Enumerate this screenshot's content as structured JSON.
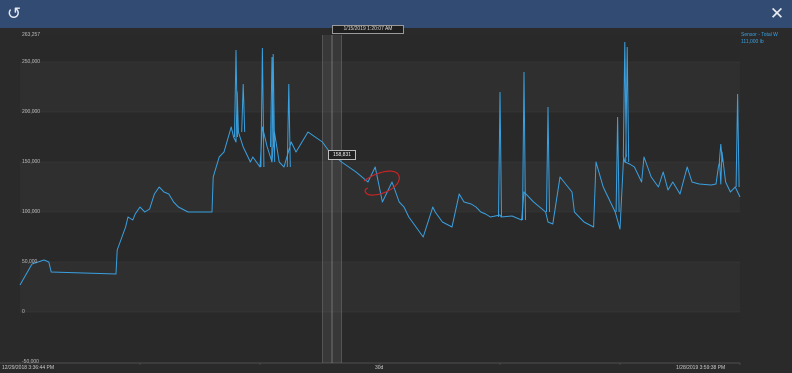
{
  "window": {
    "refresh_icon": "refresh-icon",
    "close_icon": "close-icon",
    "refresh_glyph": "↺",
    "close_glyph": "✕"
  },
  "cursor": {
    "time_label": "1/15/2019 1:20:07 AM",
    "value_label": "158,831"
  },
  "legend": {
    "line1": "Sensor - Total W",
    "line2": "111,000 lb"
  },
  "colors": {
    "line": "#3aa0e0",
    "annotation": "#d22424",
    "background": "#2a2a2a",
    "titlebar": "#324b72"
  },
  "chart_data": {
    "type": "line",
    "y_ticks": [
      "263,257",
      "250,000",
      "200,000",
      "150,000",
      "100,000",
      "50,000",
      "0",
      "-50,000"
    ],
    "x_ticks": [
      "12/29/2018 3:36:44 PM",
      "30d",
      "1/28/2019 3:59:38 PM"
    ],
    "ylim": [
      -50000,
      263257
    ],
    "xlim": [
      0,
      30
    ],
    "x_unit": "days",
    "grid": true,
    "series": [
      {
        "name": "Sensor - Total W",
        "x": [
          0,
          0.5,
          1.0,
          1.2,
          1.3,
          4.0,
          4.05,
          4.4,
          4.5,
          4.7,
          4.8,
          5.0,
          5.2,
          5.4,
          5.6,
          5.8,
          6.0,
          6.2,
          6.4,
          6.6,
          7.0,
          8.0,
          8.05,
          8.3,
          8.5,
          8.8,
          8.9,
          9.0,
          9.05,
          9.1,
          9.3,
          9.4,
          9.6,
          9.7,
          10.0,
          10.1,
          10.3,
          10.5,
          10.6,
          10.8,
          11.0,
          11.3,
          11.5,
          12.0,
          12.3,
          12.6,
          12.9,
          13.0,
          13.2,
          13.3,
          13.4,
          14.0,
          14.5,
          14.8,
          15.1,
          15.5,
          15.8,
          16.0,
          16.2,
          16.5,
          16.8,
          17.2,
          17.3,
          17.6,
          18.0,
          18.3,
          18.5,
          18.8,
          19.0,
          19.2,
          19.4,
          19.6,
          20.0,
          20.05,
          20.5,
          20.9,
          21.0,
          21.4,
          21.9,
          22.0,
          22.2,
          22.5,
          23.0,
          23.1,
          23.5,
          23.9,
          24.0,
          24.3,
          24.6,
          24.8,
          25.0,
          25.15,
          25.2,
          25.4,
          25.6,
          25.9,
          26.0,
          26.3,
          26.6,
          26.8,
          27.0,
          27.2,
          27.5,
          27.8,
          28.0,
          28.3,
          28.8,
          29.0,
          29.1,
          29.15,
          29.2,
          29.25,
          29.4,
          29.6,
          29.8,
          30.0
        ],
        "values": [
          27000,
          48000,
          52000,
          50000,
          40000,
          38000,
          62000,
          85000,
          95000,
          92000,
          98000,
          105000,
          100000,
          103000,
          118000,
          125000,
          120000,
          118000,
          110000,
          105000,
          100000,
          100000,
          135000,
          155000,
          160000,
          185000,
          175000,
          170000,
          220000,
          180000,
          165000,
          160000,
          150000,
          155000,
          145000,
          185000,
          165000,
          150000,
          180000,
          150000,
          145000,
          170000,
          160000,
          180000,
          175000,
          170000,
          160000,
          158831,
          155000,
          152000,
          150000,
          140000,
          130000,
          145000,
          110000,
          130000,
          110000,
          105000,
          95000,
          85000,
          75000,
          105000,
          100000,
          90000,
          85000,
          118000,
          110000,
          108000,
          105000,
          100000,
          98000,
          95000,
          97000,
          95000,
          96000,
          92000,
          120000,
          110000,
          100000,
          90000,
          88000,
          135000,
          120000,
          100000,
          90000,
          85000,
          150000,
          125000,
          110000,
          100000,
          83000,
          155000,
          150000,
          148000,
          145000,
          130000,
          155000,
          135000,
          125000,
          140000,
          122000,
          130000,
          118000,
          145000,
          130000,
          128000,
          127000,
          128000,
          145000,
          150000,
          128000,
          160000,
          130000,
          120000,
          125000,
          115000
        ]
      }
    ],
    "spikes": [
      {
        "x": 9.0,
        "y": 262000
      },
      {
        "x": 9.3,
        "y": 228000
      },
      {
        "x": 10.1,
        "y": 264000
      },
      {
        "x": 10.5,
        "y": 255000
      },
      {
        "x": 10.55,
        "y": 258000
      },
      {
        "x": 11.2,
        "y": 228000
      },
      {
        "x": 20.0,
        "y": 220000
      },
      {
        "x": 21.0,
        "y": 240000
      },
      {
        "x": 22.0,
        "y": 205000
      },
      {
        "x": 24.9,
        "y": 195000
      },
      {
        "x": 25.2,
        "y": 270000
      },
      {
        "x": 25.3,
        "y": 265000
      },
      {
        "x": 29.2,
        "y": 168000
      },
      {
        "x": 29.9,
        "y": 218000
      }
    ],
    "cursor_x": 13.0,
    "cursor_band": [
      12.6,
      13.4
    ]
  }
}
